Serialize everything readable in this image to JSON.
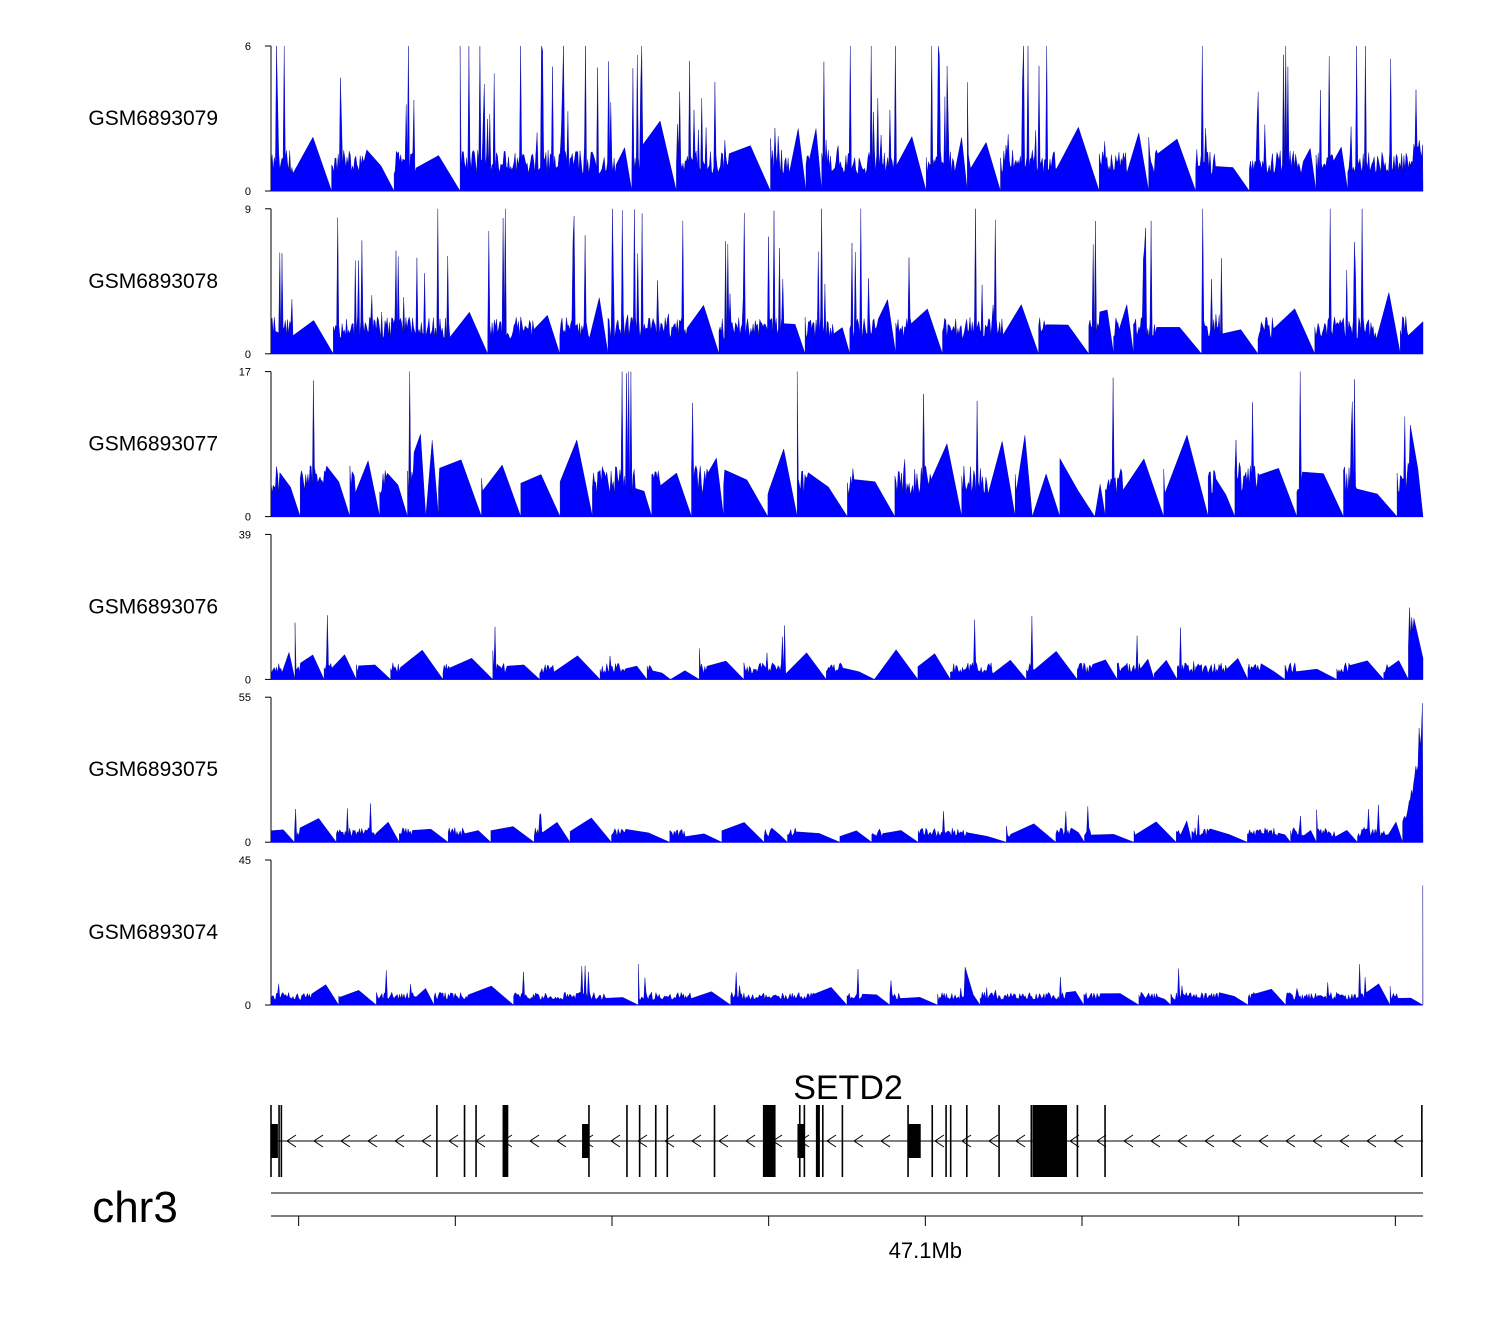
{
  "chart_data": {
    "type": "area",
    "title": "",
    "colors": {
      "signal": "#0000ff",
      "axis": "#000000",
      "gene": "#000000"
    },
    "tracks": [
      {
        "name": "GSM6893079",
        "ylim": [
          0,
          6
        ],
        "ymax_label": "6",
        "ymin_label": "0",
        "baseline": 0.7,
        "noise": 1.0,
        "spike_rate": 0.16,
        "spike_max": 6,
        "gap_rate": 0.03,
        "tail": 1.5
      },
      {
        "name": "GSM6893078",
        "ylim": [
          0,
          9
        ],
        "ymax_label": "9",
        "ymin_label": "0",
        "baseline": 0.9,
        "noise": 1.4,
        "spike_rate": 0.14,
        "spike_max": 8.5,
        "gap_rate": 0.035,
        "tail": 2.0
      },
      {
        "name": "GSM6893077",
        "ylim": [
          0,
          17
        ],
        "ymax_label": "17",
        "ymin_label": "0",
        "baseline": 2.5,
        "noise": 3.5,
        "spike_rate": 0.1,
        "spike_max": 16,
        "gap_rate": 0.1,
        "tail": 5
      },
      {
        "name": "GSM6893076",
        "ylim": [
          0,
          39
        ],
        "ymax_label": "39",
        "ymin_label": "0",
        "baseline": 1.5,
        "noise": 3.0,
        "spike_rate": 0.05,
        "spike_max": 14,
        "gap_rate": 0.09,
        "tail": 39
      },
      {
        "name": "GSM6893075",
        "ylim": [
          0,
          55
        ],
        "ymax_label": "55",
        "ymin_label": "0",
        "baseline": 2.0,
        "noise": 3.5,
        "spike_rate": 0.05,
        "spike_max": 12,
        "gap_rate": 0.06,
        "tail": 55
      },
      {
        "name": "GSM6893074",
        "ylim": [
          0,
          45
        ],
        "ymax_label": "45",
        "ymin_label": "0",
        "baseline": 1.5,
        "noise": 2.5,
        "spike_rate": 0.04,
        "spike_max": 10,
        "gap_rate": 0.02,
        "tail": 45
      }
    ],
    "gene": {
      "name": "SETD2",
      "strand": "-",
      "exons": [
        [
          0.0,
          0.006
        ],
        [
          0.201,
          0.206
        ],
        [
          0.27,
          0.276
        ],
        [
          0.427,
          0.438
        ],
        [
          0.457,
          0.463
        ],
        [
          0.473,
          0.475
        ],
        [
          0.553,
          0.564
        ],
        [
          0.661,
          0.691
        ]
      ],
      "exon_ticks": [
        0.007,
        0.009,
        0.144,
        0.168,
        0.178,
        0.205,
        0.276,
        0.309,
        0.32,
        0.334,
        0.344,
        0.385,
        0.428,
        0.459,
        0.463,
        0.479,
        0.496,
        0.553,
        0.574,
        0.586,
        0.59,
        0.604,
        0.632,
        0.66,
        0.678,
        0.7,
        0.724,
        0.999
      ]
    },
    "chromosome": "chr3",
    "axis": {
      "ticks": [
        0.024,
        0.16,
        0.296,
        0.432,
        0.568,
        0.704,
        0.84,
        0.976
      ],
      "labels": [
        "",
        "",
        "",
        "",
        "47.1Mb",
        "",
        "",
        ""
      ]
    }
  }
}
